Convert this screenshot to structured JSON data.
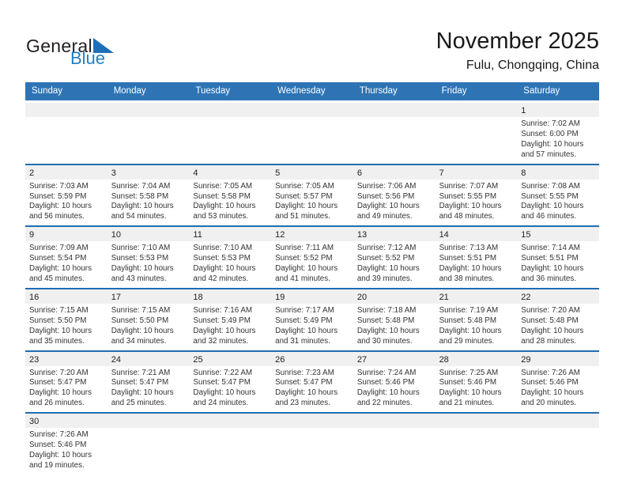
{
  "logo": {
    "word_general": "General",
    "word_blue": "Blue"
  },
  "header": {
    "title": "November 2025",
    "location": "Fulu, Chongqing, China"
  },
  "weekday_headers": [
    "Sunday",
    "Monday",
    "Tuesday",
    "Wednesday",
    "Thursday",
    "Friday",
    "Saturday"
  ],
  "colors": {
    "header_bar": "#2E74B5",
    "separator": "#1F6DB2",
    "day_band": "#F0F0F0",
    "logo_blue": "#2280C4",
    "logo_triangle": "#1D70B8",
    "title_text": "#1A1A1A",
    "detail_text": "#333333"
  },
  "weeks": [
    [
      null,
      null,
      null,
      null,
      null,
      null,
      {
        "day": "1",
        "sunrise": "Sunrise: 7:02 AM",
        "sunset": "Sunset: 6:00 PM",
        "daylight": "Daylight: 10 hours and 57 minutes."
      }
    ],
    [
      {
        "day": "2",
        "sunrise": "Sunrise: 7:03 AM",
        "sunset": "Sunset: 5:59 PM",
        "daylight": "Daylight: 10 hours and 56 minutes."
      },
      {
        "day": "3",
        "sunrise": "Sunrise: 7:04 AM",
        "sunset": "Sunset: 5:58 PM",
        "daylight": "Daylight: 10 hours and 54 minutes."
      },
      {
        "day": "4",
        "sunrise": "Sunrise: 7:05 AM",
        "sunset": "Sunset: 5:58 PM",
        "daylight": "Daylight: 10 hours and 53 minutes."
      },
      {
        "day": "5",
        "sunrise": "Sunrise: 7:05 AM",
        "sunset": "Sunset: 5:57 PM",
        "daylight": "Daylight: 10 hours and 51 minutes."
      },
      {
        "day": "6",
        "sunrise": "Sunrise: 7:06 AM",
        "sunset": "Sunset: 5:56 PM",
        "daylight": "Daylight: 10 hours and 49 minutes."
      },
      {
        "day": "7",
        "sunrise": "Sunrise: 7:07 AM",
        "sunset": "Sunset: 5:55 PM",
        "daylight": "Daylight: 10 hours and 48 minutes."
      },
      {
        "day": "8",
        "sunrise": "Sunrise: 7:08 AM",
        "sunset": "Sunset: 5:55 PM",
        "daylight": "Daylight: 10 hours and 46 minutes."
      }
    ],
    [
      {
        "day": "9",
        "sunrise": "Sunrise: 7:09 AM",
        "sunset": "Sunset: 5:54 PM",
        "daylight": "Daylight: 10 hours and 45 minutes."
      },
      {
        "day": "10",
        "sunrise": "Sunrise: 7:10 AM",
        "sunset": "Sunset: 5:53 PM",
        "daylight": "Daylight: 10 hours and 43 minutes."
      },
      {
        "day": "11",
        "sunrise": "Sunrise: 7:10 AM",
        "sunset": "Sunset: 5:53 PM",
        "daylight": "Daylight: 10 hours and 42 minutes."
      },
      {
        "day": "12",
        "sunrise": "Sunrise: 7:11 AM",
        "sunset": "Sunset: 5:52 PM",
        "daylight": "Daylight: 10 hours and 41 minutes."
      },
      {
        "day": "13",
        "sunrise": "Sunrise: 7:12 AM",
        "sunset": "Sunset: 5:52 PM",
        "daylight": "Daylight: 10 hours and 39 minutes."
      },
      {
        "day": "14",
        "sunrise": "Sunrise: 7:13 AM",
        "sunset": "Sunset: 5:51 PM",
        "daylight": "Daylight: 10 hours and 38 minutes."
      },
      {
        "day": "15",
        "sunrise": "Sunrise: 7:14 AM",
        "sunset": "Sunset: 5:51 PM",
        "daylight": "Daylight: 10 hours and 36 minutes."
      }
    ],
    [
      {
        "day": "16",
        "sunrise": "Sunrise: 7:15 AM",
        "sunset": "Sunset: 5:50 PM",
        "daylight": "Daylight: 10 hours and 35 minutes."
      },
      {
        "day": "17",
        "sunrise": "Sunrise: 7:15 AM",
        "sunset": "Sunset: 5:50 PM",
        "daylight": "Daylight: 10 hours and 34 minutes."
      },
      {
        "day": "18",
        "sunrise": "Sunrise: 7:16 AM",
        "sunset": "Sunset: 5:49 PM",
        "daylight": "Daylight: 10 hours and 32 minutes."
      },
      {
        "day": "19",
        "sunrise": "Sunrise: 7:17 AM",
        "sunset": "Sunset: 5:49 PM",
        "daylight": "Daylight: 10 hours and 31 minutes."
      },
      {
        "day": "20",
        "sunrise": "Sunrise: 7:18 AM",
        "sunset": "Sunset: 5:48 PM",
        "daylight": "Daylight: 10 hours and 30 minutes."
      },
      {
        "day": "21",
        "sunrise": "Sunrise: 7:19 AM",
        "sunset": "Sunset: 5:48 PM",
        "daylight": "Daylight: 10 hours and 29 minutes."
      },
      {
        "day": "22",
        "sunrise": "Sunrise: 7:20 AM",
        "sunset": "Sunset: 5:48 PM",
        "daylight": "Daylight: 10 hours and 28 minutes."
      }
    ],
    [
      {
        "day": "23",
        "sunrise": "Sunrise: 7:20 AM",
        "sunset": "Sunset: 5:47 PM",
        "daylight": "Daylight: 10 hours and 26 minutes."
      },
      {
        "day": "24",
        "sunrise": "Sunrise: 7:21 AM",
        "sunset": "Sunset: 5:47 PM",
        "daylight": "Daylight: 10 hours and 25 minutes."
      },
      {
        "day": "25",
        "sunrise": "Sunrise: 7:22 AM",
        "sunset": "Sunset: 5:47 PM",
        "daylight": "Daylight: 10 hours and 24 minutes."
      },
      {
        "day": "26",
        "sunrise": "Sunrise: 7:23 AM",
        "sunset": "Sunset: 5:47 PM",
        "daylight": "Daylight: 10 hours and 23 minutes."
      },
      {
        "day": "27",
        "sunrise": "Sunrise: 7:24 AM",
        "sunset": "Sunset: 5:46 PM",
        "daylight": "Daylight: 10 hours and 22 minutes."
      },
      {
        "day": "28",
        "sunrise": "Sunrise: 7:25 AM",
        "sunset": "Sunset: 5:46 PM",
        "daylight": "Daylight: 10 hours and 21 minutes."
      },
      {
        "day": "29",
        "sunrise": "Sunrise: 7:26 AM",
        "sunset": "Sunset: 5:46 PM",
        "daylight": "Daylight: 10 hours and 20 minutes."
      }
    ],
    [
      {
        "day": "30",
        "sunrise": "Sunrise: 7:26 AM",
        "sunset": "Sunset: 5:46 PM",
        "daylight": "Daylight: 10 hours and 19 minutes."
      },
      null,
      null,
      null,
      null,
      null,
      null
    ]
  ]
}
